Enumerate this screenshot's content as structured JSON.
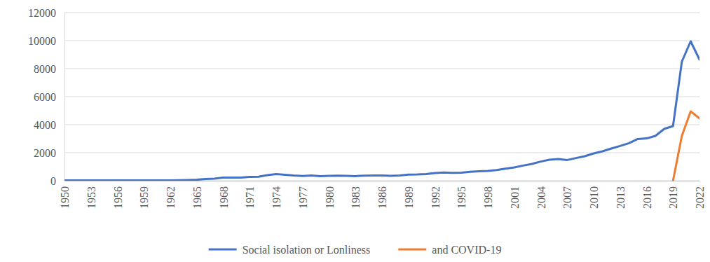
{
  "chart_data": {
    "type": "line",
    "x": [
      1950,
      1951,
      1952,
      1953,
      1954,
      1955,
      1956,
      1957,
      1958,
      1959,
      1960,
      1961,
      1962,
      1963,
      1964,
      1965,
      1966,
      1967,
      1968,
      1969,
      1970,
      1971,
      1972,
      1973,
      1974,
      1975,
      1976,
      1977,
      1978,
      1979,
      1980,
      1981,
      1982,
      1983,
      1984,
      1985,
      1986,
      1987,
      1988,
      1989,
      1990,
      1991,
      1992,
      1993,
      1994,
      1995,
      1996,
      1997,
      1998,
      1999,
      2000,
      2001,
      2002,
      2003,
      2004,
      2005,
      2006,
      2007,
      2008,
      2009,
      2010,
      2011,
      2012,
      2013,
      2014,
      2015,
      2016,
      2017,
      2018,
      2019,
      2020,
      2021,
      2022
    ],
    "xlim": [
      1950,
      2022
    ],
    "xticks": [
      1950,
      1953,
      1956,
      1959,
      1962,
      1965,
      1968,
      1971,
      1974,
      1977,
      1980,
      1983,
      1986,
      1989,
      1992,
      1995,
      1998,
      2001,
      2004,
      2007,
      2010,
      2013,
      2016,
      2019,
      2022
    ],
    "ylim": [
      0,
      12000
    ],
    "yticks": [
      0,
      2000,
      4000,
      6000,
      8000,
      10000,
      12000
    ],
    "grid": true,
    "legend": "bottom",
    "series": [
      {
        "name": "Social isolation or Lonliness",
        "color": "#4472c4",
        "values": [
          20,
          20,
          20,
          20,
          20,
          20,
          25,
          25,
          30,
          25,
          25,
          25,
          30,
          40,
          50,
          70,
          120,
          150,
          230,
          230,
          230,
          280,
          290,
          400,
          480,
          420,
          370,
          340,
          370,
          330,
          350,
          360,
          350,
          330,
          360,
          380,
          380,
          350,
          380,
          440,
          450,
          480,
          550,
          590,
          560,
          580,
          640,
          670,
          700,
          760,
          860,
          950,
          1080,
          1200,
          1370,
          1500,
          1550,
          1480,
          1620,
          1750,
          1950,
          2100,
          2300,
          2480,
          2680,
          2980,
          3020,
          3200,
          3700,
          3900,
          8500,
          9950,
          8650
        ]
      },
      {
        "name": "and COVID-19",
        "color": "#ed7d31",
        "values": [
          null,
          null,
          null,
          null,
          null,
          null,
          null,
          null,
          null,
          null,
          null,
          null,
          null,
          null,
          null,
          null,
          null,
          null,
          null,
          null,
          null,
          null,
          null,
          null,
          null,
          null,
          null,
          null,
          null,
          null,
          null,
          null,
          null,
          null,
          null,
          null,
          null,
          null,
          null,
          null,
          null,
          null,
          null,
          null,
          null,
          null,
          null,
          null,
          null,
          null,
          null,
          null,
          null,
          null,
          null,
          null,
          null,
          null,
          null,
          null,
          null,
          null,
          null,
          null,
          null,
          null,
          null,
          null,
          null,
          0,
          3200,
          4950,
          4450
        ]
      }
    ]
  }
}
